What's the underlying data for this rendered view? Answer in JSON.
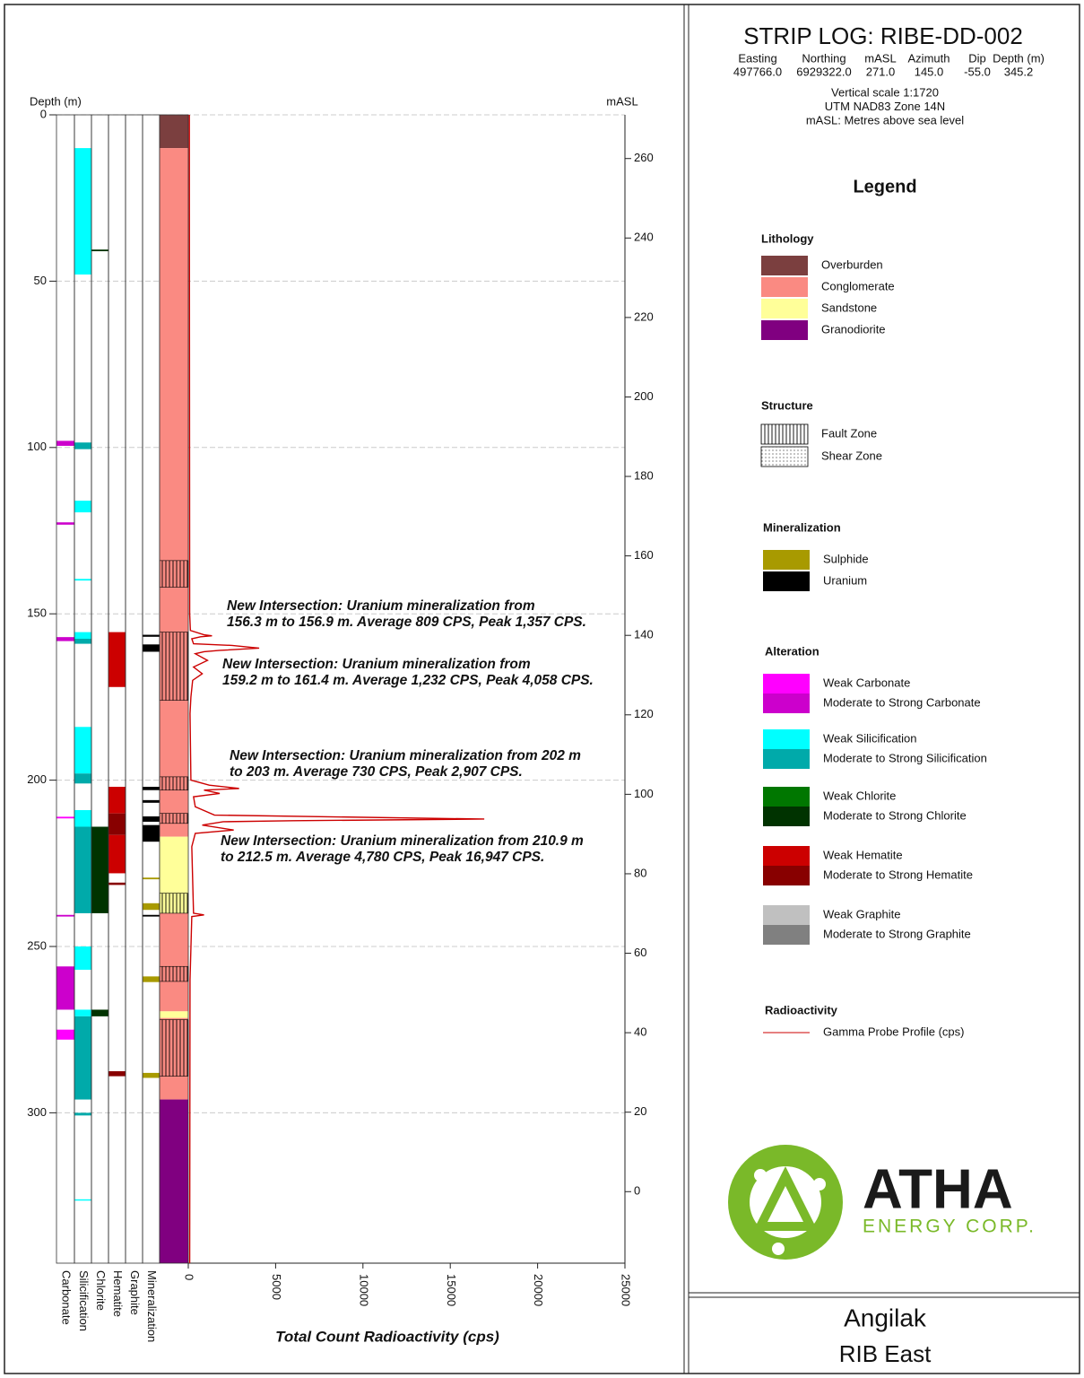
{
  "header": {
    "title": "STRIP LOG: RIBE-DD-002",
    "fields": [
      {
        "label": "Easting",
        "value": "497766.0"
      },
      {
        "label": "Northing",
        "value": "6929322.0"
      },
      {
        "label": "mASL",
        "value": "271.0"
      },
      {
        "label": "Azimuth",
        "value": "145.0"
      },
      {
        "label": "Dip",
        "value": "-55.0"
      },
      {
        "label": "Depth (m)",
        "value": "345.2"
      }
    ],
    "notes": [
      "Vertical scale 1:1720",
      "UTM NAD83 Zone 14N",
      "mASL: Metres above sea level"
    ]
  },
  "chart_data": {
    "type": "strip_log",
    "depth_label": "Depth (m)",
    "masl_label": "mASL",
    "x_label": "Total Count Radioactivity (cps)",
    "ylim": [
      0,
      345.2
    ],
    "yticks": [
      0,
      50,
      100,
      150,
      200,
      250,
      300
    ],
    "grid": true,
    "y2lim": [
      271,
      -18
    ],
    "y2ticks": [
      260,
      240,
      220,
      200,
      180,
      160,
      140,
      120,
      100,
      80,
      60,
      40,
      20,
      0
    ],
    "xlim": [
      0,
      25000
    ],
    "xticks": [
      0,
      5000,
      10000,
      15000,
      20000,
      25000
    ],
    "columns": [
      {
        "name": "Carbonate",
        "intervals": [
          {
            "from": 98,
            "to": 99.5,
            "color": "#cc00cc"
          },
          {
            "from": 122.5,
            "to": 123.2,
            "color": "#cc00cc"
          },
          {
            "from": 157,
            "to": 158.2,
            "color": "#cc00cc"
          },
          {
            "from": 211,
            "to": 211.5,
            "color": "#ff00ff"
          },
          {
            "from": 240.5,
            "to": 241,
            "color": "#cc00cc"
          },
          {
            "from": 256,
            "to": 269,
            "color": "#cc00cc"
          },
          {
            "from": 275,
            "to": 278,
            "color": "#ff00ff"
          }
        ]
      },
      {
        "name": "Silicification",
        "intervals": [
          {
            "from": 10,
            "to": 48,
            "color": "#00ffff"
          },
          {
            "from": 98.5,
            "to": 100.5,
            "color": "#00aaaa"
          },
          {
            "from": 116,
            "to": 119.5,
            "color": "#00ffff"
          },
          {
            "from": 139.5,
            "to": 140,
            "color": "#00ffff"
          },
          {
            "from": 155.5,
            "to": 157.5,
            "color": "#00ffff"
          },
          {
            "from": 157.5,
            "to": 159,
            "color": "#00aaaa"
          },
          {
            "from": 184,
            "to": 198,
            "color": "#00ffff"
          },
          {
            "from": 198,
            "to": 201,
            "color": "#00aaaa"
          },
          {
            "from": 209,
            "to": 214,
            "color": "#00ffff"
          },
          {
            "from": 214,
            "to": 240,
            "color": "#00aaaa"
          },
          {
            "from": 250,
            "to": 257,
            "color": "#00ffff"
          },
          {
            "from": 269,
            "to": 271,
            "color": "#00ffff"
          },
          {
            "from": 271,
            "to": 296,
            "color": "#00aaaa"
          },
          {
            "from": 300,
            "to": 300.8,
            "color": "#00aaaa"
          },
          {
            "from": 326,
            "to": 326.4,
            "color": "#00ffff"
          }
        ]
      },
      {
        "name": "Chlorite",
        "intervals": [
          {
            "from": 40.5,
            "to": 41,
            "color": "#003300"
          },
          {
            "from": 214,
            "to": 240,
            "color": "#003300"
          },
          {
            "from": 269,
            "to": 271,
            "color": "#003300"
          }
        ]
      },
      {
        "name": "Hematite",
        "intervals": [
          {
            "from": 155.5,
            "to": 172,
            "color": "#cc0000"
          },
          {
            "from": 202,
            "to": 210,
            "color": "#cc0000"
          },
          {
            "from": 210,
            "to": 216.5,
            "color": "#880000"
          },
          {
            "from": 216.5,
            "to": 228,
            "color": "#cc0000"
          },
          {
            "from": 230.8,
            "to": 231.5,
            "color": "#880000"
          },
          {
            "from": 287.5,
            "to": 289,
            "color": "#880000"
          }
        ]
      },
      {
        "name": "Graphite",
        "intervals": []
      },
      {
        "name": "Mineralization",
        "intervals": [
          {
            "from": 156.3,
            "to": 156.9,
            "color": "#000000"
          },
          {
            "from": 159.2,
            "to": 161.4,
            "color": "#000000"
          },
          {
            "from": 202,
            "to": 203,
            "color": "#000000"
          },
          {
            "from": 206,
            "to": 206.8,
            "color": "#000000"
          },
          {
            "from": 210.9,
            "to": 212.5,
            "color": "#000000"
          },
          {
            "from": 213.5,
            "to": 218.5,
            "color": "#000000"
          },
          {
            "from": 229.3,
            "to": 229.8,
            "color": "#a89a00"
          },
          {
            "from": 237,
            "to": 239,
            "color": "#a89a00"
          },
          {
            "from": 240.5,
            "to": 241,
            "color": "#000000"
          },
          {
            "from": 259,
            "to": 260.7,
            "color": "#a89a00"
          },
          {
            "from": 288,
            "to": 289.5,
            "color": "#a89a00"
          }
        ]
      }
    ],
    "lithology": [
      {
        "from": 0,
        "to": 10,
        "color": "#7b3f3f"
      },
      {
        "from": 10,
        "to": 217,
        "color": "#fa8a82"
      },
      {
        "from": 217,
        "to": 240,
        "color": "#ffff99"
      },
      {
        "from": 240,
        "to": 269.5,
        "color": "#fa8a82"
      },
      {
        "from": 269.5,
        "to": 271.5,
        "color": "#ffff99"
      },
      {
        "from": 271.5,
        "to": 296,
        "color": "#fa8a82"
      },
      {
        "from": 296,
        "to": 345.2,
        "color": "#800080"
      }
    ],
    "fault_zones": [
      [
        134,
        142
      ],
      [
        155.5,
        176
      ],
      [
        199,
        203
      ],
      [
        210,
        213
      ],
      [
        234,
        240
      ],
      [
        256,
        260.5
      ],
      [
        272,
        289
      ]
    ],
    "gamma": {
      "color": "#cc0000",
      "depth": [
        0,
        150,
        155,
        156.3,
        156.6,
        156.9,
        157.5,
        159,
        159.5,
        160.3,
        161,
        161.4,
        162,
        164,
        166,
        168,
        170,
        175,
        180,
        200,
        201.5,
        202.5,
        203,
        204,
        205,
        208,
        210.5,
        211.7,
        212.2,
        212.5,
        213.5,
        215,
        216,
        220,
        240,
        240.5,
        241,
        260,
        345.2
      ],
      "values": [
        60,
        80,
        120,
        900,
        1357,
        700,
        200,
        300,
        2500,
        4058,
        1800,
        900,
        400,
        1100,
        300,
        800,
        250,
        150,
        100,
        150,
        1200,
        2907,
        900,
        1800,
        300,
        400,
        1500,
        16947,
        6000,
        2000,
        800,
        2600,
        400,
        200,
        300,
        900,
        200,
        100,
        80
      ]
    },
    "annotations": [
      [
        "New Intersection: Uranium mineralization from",
        "156.3 m to 156.9 m. Average 809 CPS, Peak 1,357 CPS."
      ],
      [
        "New Intersection: Uranium mineralization from",
        "159.2 m to 161.4 m. Average 1,232 CPS, Peak 4,058 CPS."
      ],
      [
        "New Intersection: Uranium mineralization from 202 m",
        "to 203 m. Average 730 CPS, Peak 2,907 CPS."
      ],
      [
        "New Intersection: Uranium mineralization from 210.9 m",
        "to 212.5 m. Average 4,780 CPS, Peak 16,947 CPS."
      ]
    ]
  },
  "legend": {
    "title": "Legend",
    "sections": [
      {
        "title": "Lithology",
        "items": [
          {
            "label": "Overburden",
            "color": "#7b3f3f"
          },
          {
            "label": "Conglomerate",
            "color": "#fa8a82"
          },
          {
            "label": "Sandstone",
            "color": "#ffff99"
          },
          {
            "label": "Granodiorite",
            "color": "#800080"
          }
        ]
      },
      {
        "title": "Structure",
        "items": [
          {
            "label": "Fault Zone",
            "pattern": "fault"
          },
          {
            "label": "Shear Zone",
            "pattern": "shear"
          }
        ]
      },
      {
        "title": "Mineralization",
        "items": [
          {
            "label": "Sulphide",
            "color": "#a89a00"
          },
          {
            "label": "Uranium",
            "color": "#000000"
          }
        ]
      },
      {
        "title": "Alteration",
        "items": [
          {
            "label": "Weak Carbonate",
            "color": "#ff00ff"
          },
          {
            "label": "Moderate to Strong Carbonate",
            "color": "#cc00cc"
          },
          {
            "label": "Weak Silicification",
            "color": "#00ffff"
          },
          {
            "label": "Moderate to Strong Silicification",
            "color": "#00aaaa"
          },
          {
            "label": "Weak Chlorite",
            "color": "#007700"
          },
          {
            "label": "Moderate to Strong Chlorite",
            "color": "#003300"
          },
          {
            "label": "Weak Hematite",
            "color": "#cc0000"
          },
          {
            "label": "Moderate to Strong Hematite",
            "color": "#880000"
          },
          {
            "label": "Weak Graphite",
            "color": "#c0c0c0"
          },
          {
            "label": "Moderate to Strong Graphite",
            "color": "#808080"
          }
        ]
      },
      {
        "title": "Radioactivity",
        "items": [
          {
            "label": "Gamma Probe Profile (cps)",
            "line": "#cc0000"
          }
        ]
      }
    ]
  },
  "logo": {
    "name": "ATHA",
    "tagline": "ENERGY CORP."
  },
  "footer": {
    "project": "Angilak",
    "area": "RIB East"
  }
}
